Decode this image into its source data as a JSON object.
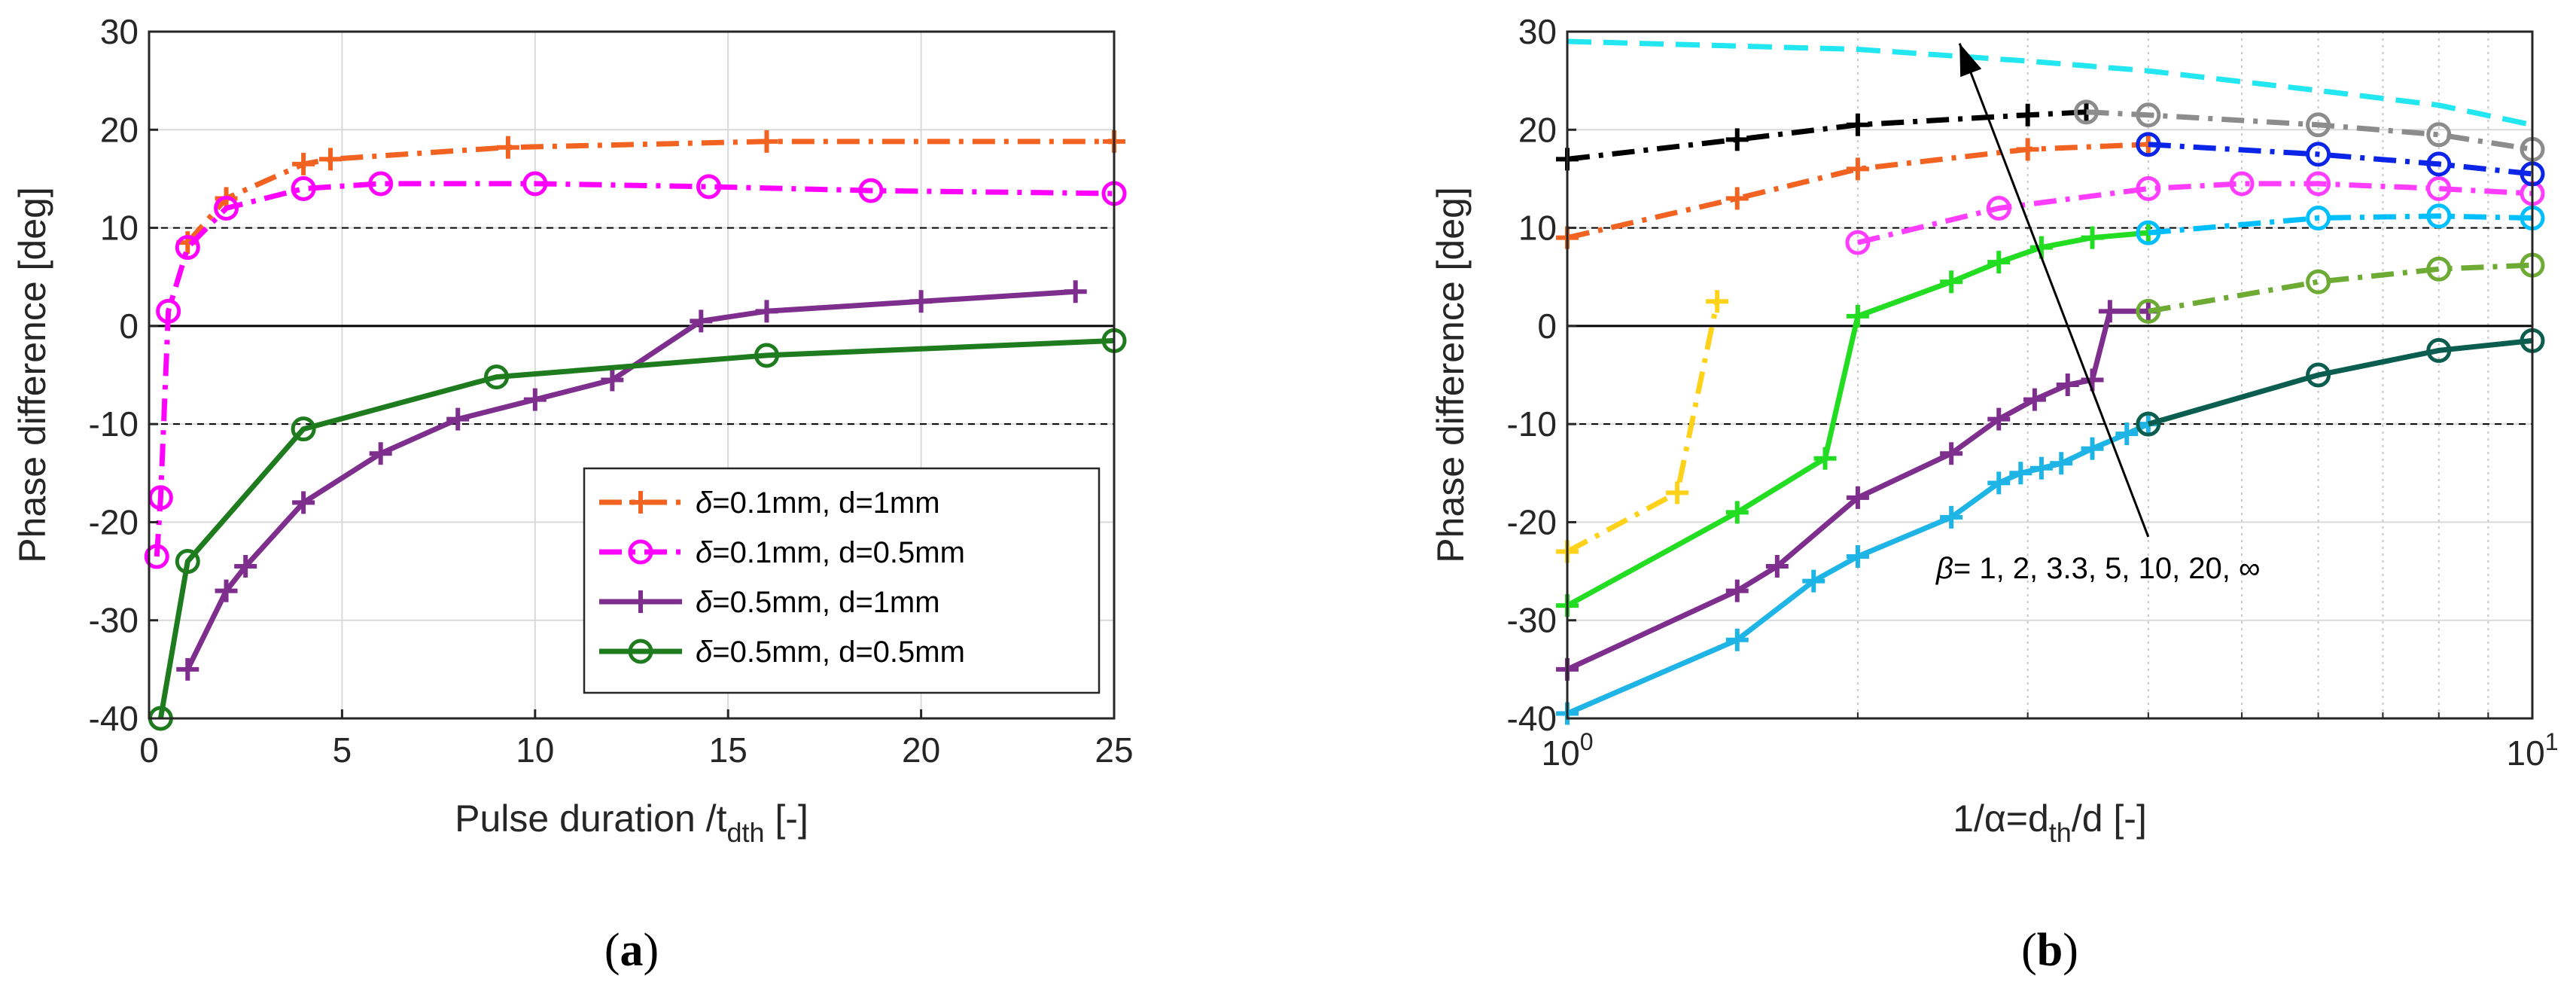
{
  "chart_data": [
    {
      "panel_label_text": "a",
      "type": "line",
      "xlabel": "Pulse duration /t",
      "xlabel_sub": "dth",
      "xlabel_tail": " [-]",
      "ylabel": "Phase difference [deg]",
      "xlim": [
        0,
        25
      ],
      "ylim": [
        -40,
        30
      ],
      "xticks": [
        0,
        5,
        10,
        15,
        20,
        25
      ],
      "yticks": [
        -40,
        -30,
        -20,
        -10,
        0,
        10,
        20,
        30
      ],
      "xscale": "linear",
      "grid": true,
      "reference_lines": [
        {
          "y": 10,
          "style": "dashed"
        },
        {
          "y": -10,
          "style": "dashed"
        },
        {
          "y": 0,
          "style": "solid"
        }
      ],
      "legend_position": "bottom-right",
      "series": [
        {
          "name": "δ=0.1mm, d=1mm",
          "legend_greek": "δ",
          "legend_rest": "=0.1mm, d=1mm",
          "color": "#F26322",
          "line": "dashdot",
          "marker": "plus",
          "x": [
            1,
            2,
            4,
            4.7,
            9.3,
            16,
            25
          ],
          "y": [
            8.5,
            13,
            16.5,
            17,
            18.2,
            18.8,
            18.8
          ]
        },
        {
          "name": "δ=0.1mm, d=0.5mm",
          "legend_greek": "δ",
          "legend_rest": "=0.1mm, d=0.5mm",
          "color": "#FF00FF",
          "line": "dashdot",
          "marker": "circle",
          "x": [
            0.2,
            0.3,
            0.5,
            1,
            2,
            4,
            6,
            10,
            14.5,
            18.7,
            25
          ],
          "y": [
            -23.5,
            -17.5,
            1.5,
            8,
            12,
            14,
            14.5,
            14.5,
            14.2,
            13.8,
            13.5
          ]
        },
        {
          "name": "δ=0.5mm, d=1mm",
          "legend_greek": "δ",
          "legend_rest": "=0.5mm, d=1mm",
          "color": "#7E2F8E",
          "line": "solid",
          "marker": "plus",
          "x": [
            1,
            2,
            2.5,
            4,
            6,
            8,
            10,
            12,
            14.3,
            16,
            20,
            24
          ],
          "y": [
            -35,
            -27,
            -24.5,
            -18,
            -13,
            -9.5,
            -7.5,
            -5.5,
            0.5,
            1.5,
            2.5,
            3.5
          ]
        },
        {
          "name": "δ=0.5mm, d=0.5mm",
          "legend_greek": "δ",
          "legend_rest": "=0.5mm, d=0.5mm",
          "color": "#1E7B1E",
          "line": "solid",
          "marker": "circle",
          "x": [
            0.3,
            1,
            4,
            9,
            16,
            25
          ],
          "y": [
            -40,
            -24,
            -10.5,
            -5.2,
            -3,
            -1.5
          ]
        }
      ]
    },
    {
      "panel_label_text": "b",
      "type": "line",
      "xlabel": "1/α=d",
      "xlabel_sub": "th",
      "xlabel_tail": "/d [-]",
      "ylabel": "Phase difference [deg]",
      "xlim": [
        1,
        10
      ],
      "ylim": [
        -40,
        30
      ],
      "xtick_labels": [
        {
          "base": "10",
          "exp": "0",
          "x": 1
        },
        {
          "base": "10",
          "exp": "1",
          "x": 10
        }
      ],
      "yticks": [
        -40,
        -30,
        -20,
        -10,
        0,
        10,
        20,
        30
      ],
      "xscale": "log",
      "grid": true,
      "reference_lines": [
        {
          "y": 10,
          "style": "dashed"
        },
        {
          "y": -10,
          "style": "dashed"
        },
        {
          "y": 0,
          "style": "solid"
        }
      ],
      "annotation": {
        "text_greek": "β",
        "text_rest": "= 1, 2, 3.3, 5, 10, 20, ∞",
        "arrow_from": [
          4,
          -21.5
        ],
        "arrow_to": [
          2.55,
          28.8
        ]
      },
      "series": [
        {
          "name": "left-1",
          "color": "#1FB4E6",
          "line": "solid",
          "marker": "plus",
          "x": [
            1,
            1.5,
            1.8,
            2,
            2.5,
            2.8,
            2.95,
            3.1,
            3.25,
            3.5,
            3.8,
            4
          ],
          "y": [
            -39.5,
            -32,
            -26,
            -23.5,
            -19.5,
            -16,
            -15,
            -14.5,
            -14,
            -12.5,
            -11,
            -10
          ]
        },
        {
          "name": "right-1",
          "color": "#0B5E4F",
          "line": "solid",
          "marker": "circle",
          "x": [
            4,
            6,
            8,
            10
          ],
          "y": [
            -10,
            -5,
            -2.5,
            -1.5
          ]
        },
        {
          "name": "left-2",
          "color": "#7E2F8E",
          "line": "solid",
          "marker": "plus",
          "x": [
            1,
            1.5,
            1.65,
            2,
            2.5,
            2.8,
            3.05,
            3.3,
            3.5,
            3.65,
            4
          ],
          "y": [
            -35,
            -27,
            -24.5,
            -17.5,
            -13,
            -9.5,
            -7.5,
            -6,
            -5.5,
            1.5,
            1.5
          ]
        },
        {
          "name": "left-3",
          "color": "#22DD22",
          "line": "solid",
          "marker": "plus",
          "x": [
            1,
            1.5,
            1.85,
            2,
            2.5,
            2.8,
            3.1,
            3.5,
            4
          ],
          "y": [
            -28.5,
            -19,
            -13.5,
            1,
            4.5,
            6.5,
            8,
            9,
            9.5
          ]
        },
        {
          "name": "right-3",
          "color": "#6DAB35",
          "line": "dashdot",
          "marker": "circle",
          "x": [
            4,
            6,
            8,
            10
          ],
          "y": [
            1.5,
            4.5,
            5.8,
            6.2
          ]
        },
        {
          "name": "left-4",
          "color": "#FFD21A",
          "line": "dashdot",
          "marker": "plus",
          "x": [
            1,
            1.3,
            1.43
          ],
          "y": [
            -23,
            -17,
            2.5
          ]
        },
        {
          "name": "right-4",
          "color": "#00BFFF",
          "line": "dashdot",
          "marker": "circle",
          "x": [
            4,
            6,
            8,
            10
          ],
          "y": [
            9.5,
            11,
            11.2,
            11
          ]
        },
        {
          "name": "left-5",
          "color": "#FF3DFF",
          "line": "dashdot",
          "marker": "circle",
          "x": [
            2,
            2.8,
            4,
            5,
            6,
            8,
            10
          ],
          "y": [
            8.5,
            12,
            14,
            14.5,
            14.5,
            14,
            13.5
          ]
        },
        {
          "name": "left-6",
          "color": "#F26322",
          "line": "dashdot",
          "marker": "plus",
          "x": [
            1,
            1.5,
            2,
            3,
            4
          ],
          "y": [
            9,
            13,
            16,
            18,
            18.5
          ]
        },
        {
          "name": "right-6",
          "color": "#0A24E8",
          "line": "dashdot",
          "marker": "circle",
          "x": [
            4,
            6,
            8,
            10
          ],
          "y": [
            18.5,
            17.5,
            16.5,
            15.5
          ]
        },
        {
          "name": "left-7",
          "color": "#000000",
          "line": "dashdot",
          "marker": "plus",
          "x": [
            1,
            1.5,
            2,
            3,
            3.45
          ],
          "y": [
            17,
            19,
            20.5,
            21.5,
            21.8
          ]
        },
        {
          "name": "right-7",
          "color": "#8C8C8C",
          "line": "dashdot",
          "marker": "circle",
          "x": [
            3.45,
            4,
            6,
            8,
            10
          ],
          "y": [
            21.8,
            21.5,
            20.5,
            19.5,
            18
          ]
        },
        {
          "name": "inf",
          "color": "#22E6F0",
          "line": "dashed",
          "marker": "none",
          "x": [
            1,
            2,
            3,
            4,
            6,
            8,
            10
          ],
          "y": [
            29,
            28.2,
            27,
            26,
            24,
            22.5,
            20.5
          ]
        }
      ]
    }
  ]
}
